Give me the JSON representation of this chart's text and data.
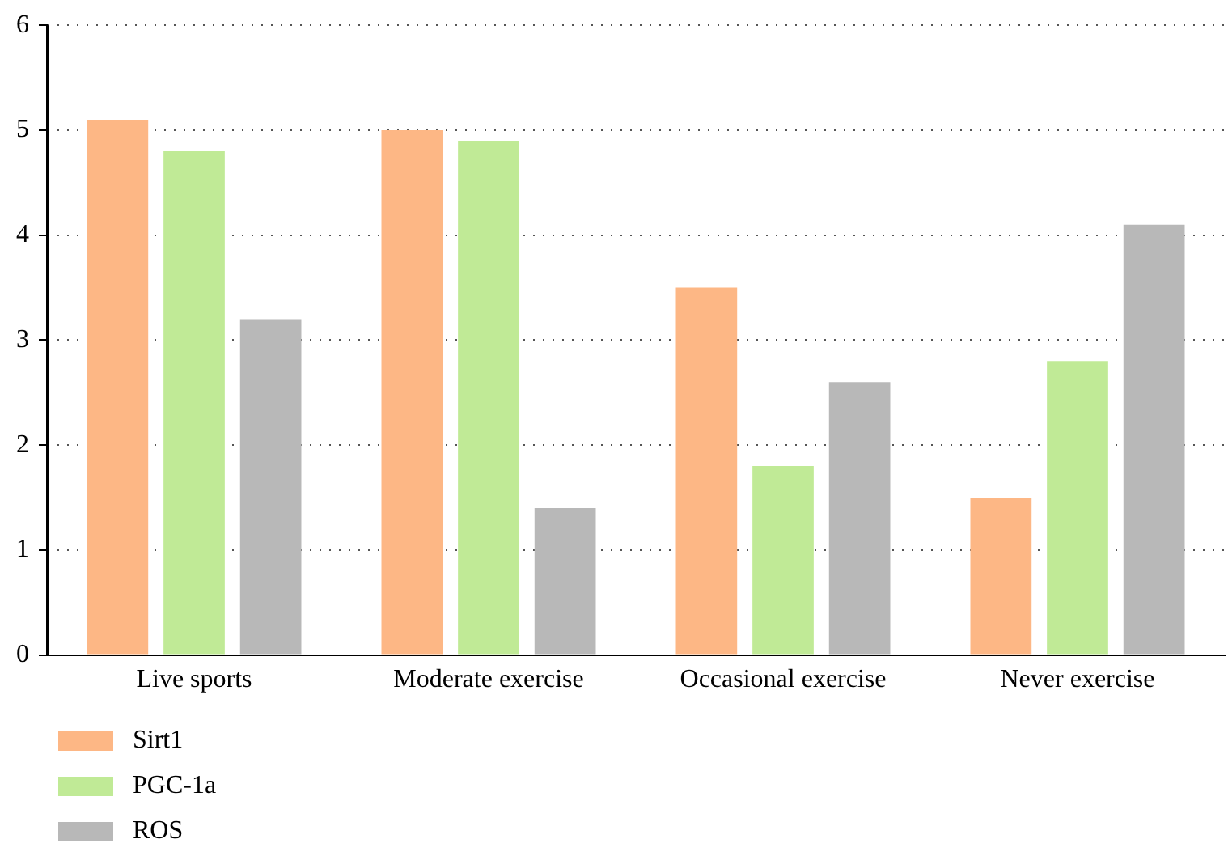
{
  "chart_data": {
    "type": "bar",
    "categories": [
      "Live sports",
      "Moderate exercise",
      "Occasional exercise",
      "Never exercise"
    ],
    "series": [
      {
        "name": "Sirt1",
        "color": "#fdb785",
        "values": [
          5.1,
          5.0,
          3.5,
          1.5
        ]
      },
      {
        "name": "PGC-1a",
        "color": "#c0ea96",
        "values": [
          4.8,
          4.9,
          1.8,
          2.8
        ]
      },
      {
        "name": "ROS",
        "color": "#b8b8b8",
        "values": [
          3.2,
          1.4,
          2.6,
          4.1
        ]
      }
    ],
    "ylim": [
      0,
      6
    ],
    "yticks": [
      0,
      1,
      2,
      3,
      4,
      5,
      6
    ],
    "grid": "y",
    "legend": "bottom left"
  }
}
